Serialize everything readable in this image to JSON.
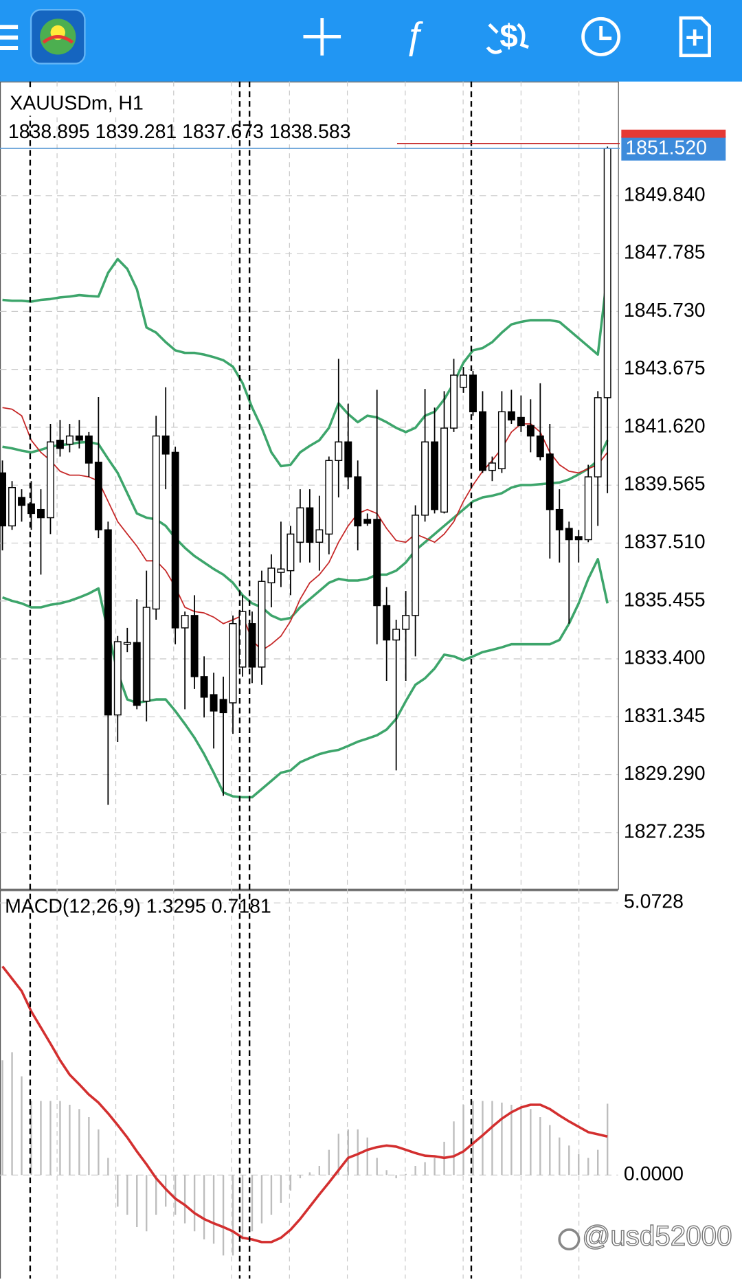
{
  "chart_data": [
    {
      "type": "candlestick",
      "symbol_label": "XAUUSDm, H1",
      "ohlc_label": "1838.895 1839.281 1837.673 1838.583",
      "open": [
        1840.0,
        1838.12,
        1839.13,
        1838.9,
        1838.7,
        1838.41,
        1841.16,
        1841.02,
        1841.31,
        1841.31,
        1840.38,
        1837.98,
        1831.41,
        1833.92,
        1833.98,
        1831.9,
        1835.17,
        1841.31,
        1840.73,
        1834.5,
        1834.94,
        1832.77,
        1832.13,
        1831.96,
        1831.84,
        1833.11,
        1834.65,
        1833.11,
        1836.1,
        1836.47,
        1836.53,
        1837.54,
        1838.76,
        1837.54,
        1837.83,
        1840.44,
        1841.1,
        1839.86,
        1838.35,
        1838.35,
        1835.29,
        1834.07,
        1834.45,
        1834.94,
        1838.5,
        1841.1,
        1838.61,
        1841.59,
        1843.04,
        1843.47,
        1842.17,
        1840.09,
        1840.15,
        1842.17,
        1841.97,
        1841.68,
        1841.31,
        1840.67,
        1838.7,
        1838.03,
        1837.74,
        1837.63,
        1839.86,
        1842.67
      ],
      "high": [
        1840.44,
        1839.71,
        1839.42,
        1839.71,
        1839.42,
        1841.74,
        1841.88,
        1841.74,
        1841.88,
        1841.45,
        1842.69,
        1838.27,
        1834.21,
        1834.5,
        1835.52,
        1836.53,
        1842.03,
        1843.04,
        1840.93,
        1835.08,
        1835.66,
        1833.49,
        1832.91,
        1832.77,
        1834.94,
        1835.66,
        1835.08,
        1836.53,
        1837.11,
        1838.27,
        1838.12,
        1839.42,
        1839.42,
        1839.19,
        1840.58,
        1844.05,
        1842.46,
        1840.44,
        1838.56,
        1842.95,
        1835.95,
        1834.79,
        1835.81,
        1838.85,
        1842.98,
        1842.32,
        1842.9,
        1844.05,
        1843.76,
        1843.62,
        1842.9,
        1840.58,
        1842.9,
        1842.95,
        1842.75,
        1842.61,
        1843.18,
        1841.74,
        1839.42,
        1838.27,
        1837.98,
        1840.29,
        1842.9,
        1851.58
      ],
      "low": [
        1837.25,
        1837.98,
        1838.27,
        1837.98,
        1836.39,
        1837.83,
        1840.58,
        1840.73,
        1840.87,
        1839.86,
        1837.69,
        1828.22,
        1830.45,
        1833.64,
        1831.61,
        1831.18,
        1834.79,
        1839.42,
        1833.92,
        1831.61,
        1832.33,
        1831.32,
        1830.22,
        1828.54,
        1830.74,
        1832.77,
        1832.54,
        1832.48,
        1835.23,
        1835.95,
        1835.66,
        1836.82,
        1836.82,
        1836.53,
        1837.11,
        1839.13,
        1839.42,
        1837.25,
        1838.12,
        1833.92,
        1832.62,
        1829.44,
        1832.62,
        1833.49,
        1838.27,
        1838.56,
        1838.56,
        1841.45,
        1842.84,
        1842.03,
        1840.0,
        1839.71,
        1840.0,
        1841.74,
        1841.45,
        1840.73,
        1840.44,
        1836.96,
        1836.82,
        1834.65,
        1836.82,
        1837.54,
        1838.12,
        1839.28
      ],
      "close": [
        1838.12,
        1839.48,
        1838.85,
        1838.56,
        1838.41,
        1841.1,
        1840.87,
        1841.31,
        1841.16,
        1840.35,
        1837.98,
        1831.41,
        1834.01,
        1833.98,
        1831.75,
        1835.23,
        1841.31,
        1840.67,
        1834.5,
        1834.94,
        1832.77,
        1832.04,
        1831.55,
        1831.49,
        1834.65,
        1835.08,
        1833.11,
        1836.15,
        1836.62,
        1836.59,
        1837.83,
        1838.76,
        1837.54,
        1837.98,
        1840.44,
        1841.1,
        1839.86,
        1838.12,
        1838.21,
        1835.29,
        1834.07,
        1834.45,
        1834.94,
        1838.5,
        1841.1,
        1838.7,
        1841.59,
        1843.47,
        1843.47,
        1842.17,
        1840.09,
        1840.35,
        1842.17,
        1841.88,
        1841.68,
        1841.31,
        1840.58,
        1838.7,
        1837.98,
        1837.63,
        1837.63,
        1839.86,
        1842.67,
        1851.52
      ],
      "up_color": "#ffffff",
      "down_color": "#000000",
      "overlays": [
        {
          "color": "#3da56b",
          "values": [
            1846.14,
            1846.11,
            1846.11,
            1846.08,
            1846.14,
            1846.17,
            1846.23,
            1846.26,
            1846.31,
            1846.28,
            1846.26,
            1847.1,
            1847.59,
            1847.24,
            1846.52,
            1845.16,
            1844.98,
            1844.64,
            1844.35,
            1844.26,
            1844.26,
            1844.2,
            1844.11,
            1844.0,
            1843.77,
            1843.19,
            1842.32,
            1841.6,
            1840.73,
            1840.24,
            1840.29,
            1840.73,
            1840.96,
            1841.16,
            1841.6,
            1842.47,
            1842.09,
            1841.8,
            1842.03,
            1841.97,
            1841.8,
            1841.6,
            1841.45,
            1841.6,
            1842.03,
            1842.17,
            1842.61,
            1843.19,
            1843.91,
            1844.35,
            1844.43,
            1844.64,
            1844.98,
            1845.27,
            1845.36,
            1845.42,
            1845.42,
            1845.42,
            1845.36,
            1845.07,
            1844.78,
            1844.49,
            1844.2,
            1847.1
          ]
        },
        {
          "color": "#3da56b",
          "values": [
            1840.93,
            1840.87,
            1840.79,
            1840.73,
            1840.82,
            1840.93,
            1840.99,
            1841.02,
            1841.08,
            1841.1,
            1841.02,
            1840.5,
            1840.0,
            1839.28,
            1838.56,
            1838.41,
            1838.35,
            1838.12,
            1837.69,
            1837.34,
            1837.05,
            1836.82,
            1836.59,
            1836.39,
            1836.1,
            1835.66,
            1835.37,
            1835.23,
            1834.94,
            1834.79,
            1834.85,
            1835.23,
            1835.52,
            1835.81,
            1836.1,
            1836.24,
            1836.18,
            1836.18,
            1836.24,
            1836.39,
            1836.39,
            1836.53,
            1836.82,
            1837.25,
            1837.54,
            1837.83,
            1838.12,
            1838.41,
            1838.7,
            1838.99,
            1839.13,
            1839.19,
            1839.28,
            1839.48,
            1839.57,
            1839.57,
            1839.6,
            1839.63,
            1839.66,
            1839.77,
            1839.95,
            1840.15,
            1840.44,
            1841.16
          ]
        },
        {
          "color": "#3da56b",
          "values": [
            1835.58,
            1835.46,
            1835.37,
            1835.23,
            1835.23,
            1835.32,
            1835.37,
            1835.46,
            1835.58,
            1835.72,
            1835.9,
            1834.36,
            1832.91,
            1831.96,
            1831.84,
            1831.9,
            1831.96,
            1831.96,
            1831.55,
            1831.09,
            1830.6,
            1830.02,
            1829.36,
            1828.66,
            1828.52,
            1828.49,
            1828.49,
            1828.78,
            1829.07,
            1829.36,
            1829.44,
            1829.73,
            1829.88,
            1830.02,
            1830.11,
            1830.17,
            1830.31,
            1830.46,
            1830.57,
            1830.69,
            1830.89,
            1831.27,
            1831.9,
            1832.48,
            1832.71,
            1833.06,
            1833.55,
            1833.49,
            1833.35,
            1833.49,
            1833.64,
            1833.72,
            1833.81,
            1833.92,
            1833.92,
            1833.92,
            1833.92,
            1833.92,
            1834.07,
            1834.65,
            1835.37,
            1836.24,
            1836.94,
            1835.37
          ]
        },
        {
          "color": "#c62828",
          "values": [
            1842.32,
            1842.26,
            1842.03,
            1841.16,
            1840.73,
            1840.44,
            1840.06,
            1839.92,
            1839.92,
            1839.86,
            1839.71,
            1838.99,
            1838.27,
            1837.83,
            1837.4,
            1836.88,
            1836.88,
            1836.53,
            1835.95,
            1835.23,
            1835.08,
            1835.03,
            1834.88,
            1834.65,
            1834.79,
            1834.94,
            1834.07,
            1833.7,
            1833.92,
            1834.21,
            1834.74,
            1835.52,
            1836.1,
            1836.39,
            1836.82,
            1837.54,
            1838.12,
            1838.56,
            1838.7,
            1838.56,
            1838.03,
            1837.6,
            1837.54,
            1837.83,
            1837.69,
            1837.54,
            1837.83,
            1838.27,
            1838.99,
            1839.57,
            1840.06,
            1840.44,
            1840.87,
            1841.45,
            1841.74,
            1841.74,
            1841.45,
            1840.73,
            1840.29,
            1840.06,
            1840.0,
            1840.15,
            1840.29,
            1840.73
          ]
        }
      ],
      "ylim": [
        1825.24,
        1853.89
      ],
      "yticks": [
        1827.235,
        {
          "value": 1829.29,
          "label": "1829.290"
        },
        1831.345,
        {
          "value": 1833.4,
          "label": "1833.400"
        },
        1835.455,
        {
          "value": 1837.51,
          "label": "1837.510"
        },
        1839.565,
        {
          "value": 1841.62,
          "label": "1841.620"
        },
        1843.675,
        {
          "value": 1845.73,
          "label": "1845.730"
        },
        1847.785,
        {
          "value": 1849.84,
          "label": "1849.840"
        }
      ],
      "current_price": {
        "value": 1851.52,
        "label": "1851.520"
      },
      "grid": true
    },
    {
      "type": "macd",
      "indicator_label": "MACD(12,26,9) 1.3295 0.7181",
      "histogram": {
        "color": "#bdbdbd",
        "values": [
          2.14,
          2.29,
          1.84,
          1.38,
          1.38,
          1.38,
          1.38,
          1.31,
          1.23,
          1.08,
          0.85,
          0.32,
          -0.59,
          -0.74,
          -0.97,
          -1.05,
          -0.74,
          -0.59,
          -0.74,
          -0.9,
          -1.05,
          -1.2,
          -1.28,
          -1.5,
          -1.5,
          -1.2,
          -1.05,
          -0.9,
          -0.74,
          -0.52,
          -0.29,
          -0.06,
          0.05,
          0.17,
          0.47,
          0.77,
          0.85,
          0.85,
          0.7,
          0.32,
          0.09,
          -0.06,
          0.02,
          0.17,
          0.24,
          0.32,
          0.62,
          1.0,
          1.31,
          1.38,
          1.38,
          1.38,
          1.35,
          1.31,
          1.26,
          1.23,
          1.08,
          0.93,
          0.7,
          0.55,
          0.39,
          0.32,
          0.47,
          1.3295
        ]
      },
      "signal": {
        "color": "#d32f2f",
        "values": [
          3.89,
          3.66,
          3.43,
          3.05,
          2.75,
          2.45,
          2.14,
          1.87,
          1.69,
          1.5,
          1.35,
          1.15,
          0.93,
          0.7,
          0.44,
          0.2,
          -0.06,
          -0.26,
          -0.44,
          -0.56,
          -0.71,
          -0.82,
          -0.9,
          -0.97,
          -1.05,
          -1.17,
          -1.2,
          -1.25,
          -1.25,
          -1.17,
          -1.02,
          -0.82,
          -0.59,
          -0.36,
          -0.14,
          0.09,
          0.32,
          0.39,
          0.47,
          0.52,
          0.55,
          0.53,
          0.47,
          0.41,
          0.36,
          0.35,
          0.32,
          0.35,
          0.44,
          0.59,
          0.74,
          0.9,
          1.05,
          1.17,
          1.26,
          1.31,
          1.31,
          1.23,
          1.11,
          1.0,
          0.9,
          0.8,
          0.76,
          0.7181
        ]
      },
      "ylim": [
        -1.93,
        5.29
      ],
      "yticks": [
        5.0728,
        {
          "value": 0,
          "label": "0.0000"
        }
      ],
      "grid": true
    }
  ],
  "watermark": "@usd52000"
}
